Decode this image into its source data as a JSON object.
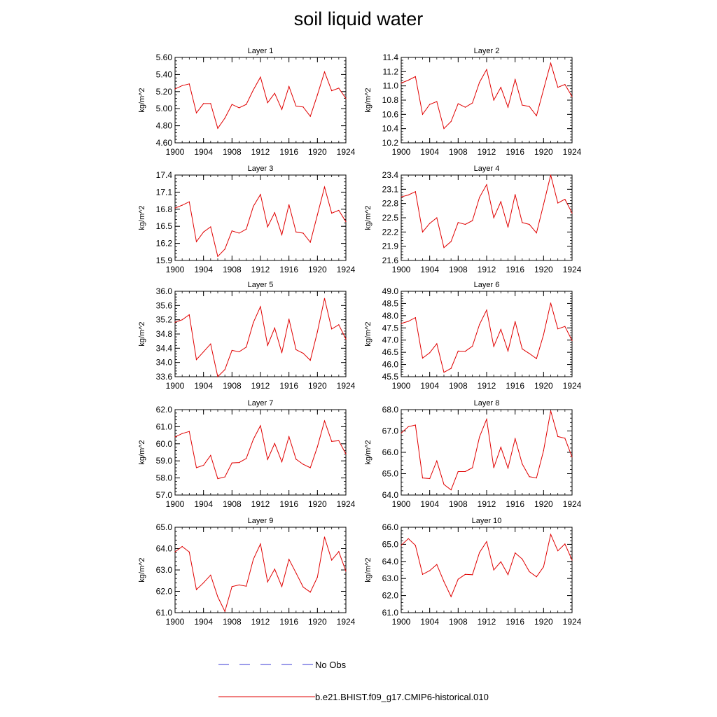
{
  "title": "soil liquid water",
  "legend": {
    "entries": [
      {
        "label": "No Obs",
        "color": "#3a3ad6",
        "style": "dashed"
      },
      {
        "label": "b.e21.BHIST.f09_g17.CMIP6-historical.010",
        "color": "#e00000",
        "style": "solid"
      }
    ]
  },
  "chart_data": [
    {
      "type": "line",
      "title": "Layer 1",
      "xlabel": "",
      "ylabel": "kg/m^2",
      "xlim": [
        1900,
        1924
      ],
      "ylim": [
        4.6,
        5.6
      ],
      "xticks": [
        "1900",
        "1904",
        "1908",
        "1912",
        "1916",
        "1920",
        "1924"
      ],
      "yticks": [
        "4.60",
        "4.80",
        "5.00",
        "5.20",
        "5.40",
        "5.60"
      ],
      "series": [
        {
          "color": "#e00000",
          "x": [
            1900,
            1901,
            1902,
            1903,
            1904,
            1905,
            1906,
            1907,
            1908,
            1909,
            1910,
            1911,
            1912,
            1913,
            1914,
            1915,
            1916,
            1917,
            1918,
            1919,
            1920,
            1921,
            1922,
            1923,
            1924
          ],
          "values": [
            5.23,
            5.27,
            5.29,
            4.95,
            5.06,
            5.06,
            4.77,
            4.89,
            5.05,
            5.01,
            5.05,
            5.22,
            5.37,
            5.07,
            5.18,
            4.99,
            5.26,
            5.03,
            5.02,
            4.91,
            5.16,
            5.43,
            5.21,
            5.24,
            5.12
          ]
        }
      ]
    },
    {
      "type": "line",
      "title": "Layer 2",
      "xlabel": "",
      "ylabel": "kg/m^2",
      "xlim": [
        1900,
        1924
      ],
      "ylim": [
        10.2,
        11.4
      ],
      "xticks": [
        "1900",
        "1904",
        "1908",
        "1912",
        "1916",
        "1920",
        "1924"
      ],
      "yticks": [
        "10.2",
        "10.4",
        "10.6",
        "10.8",
        "11.0",
        "11.2",
        "11.4"
      ],
      "series": [
        {
          "color": "#e00000",
          "x": [
            1900,
            1901,
            1902,
            1903,
            1904,
            1905,
            1906,
            1907,
            1908,
            1909,
            1910,
            1911,
            1912,
            1913,
            1914,
            1915,
            1916,
            1917,
            1918,
            1919,
            1920,
            1921,
            1922,
            1923,
            1924
          ],
          "values": [
            11.04,
            11.08,
            11.13,
            10.6,
            10.74,
            10.78,
            10.4,
            10.5,
            10.75,
            10.7,
            10.76,
            11.05,
            11.23,
            10.8,
            10.98,
            10.7,
            11.09,
            10.73,
            10.71,
            10.58,
            10.95,
            11.32,
            10.98,
            11.02,
            10.85
          ]
        }
      ]
    },
    {
      "type": "line",
      "title": "Layer 3",
      "xlabel": "",
      "ylabel": "kg/m^2",
      "xlim": [
        1900,
        1924
      ],
      "ylim": [
        15.9,
        17.4
      ],
      "xticks": [
        "1900",
        "1904",
        "1908",
        "1912",
        "1916",
        "1920",
        "1924"
      ],
      "yticks": [
        "15.9",
        "16.2",
        "16.5",
        "16.8",
        "17.1",
        "17.4"
      ],
      "series": [
        {
          "color": "#e00000",
          "x": [
            1900,
            1901,
            1902,
            1903,
            1904,
            1905,
            1906,
            1907,
            1908,
            1909,
            1910,
            1911,
            1912,
            1913,
            1914,
            1915,
            1916,
            1917,
            1918,
            1919,
            1920,
            1921,
            1922,
            1923,
            1924
          ],
          "values": [
            16.82,
            16.87,
            16.93,
            16.23,
            16.4,
            16.49,
            15.97,
            16.1,
            16.42,
            16.38,
            16.45,
            16.85,
            17.06,
            16.49,
            16.74,
            16.35,
            16.88,
            16.4,
            16.38,
            16.22,
            16.7,
            17.19,
            16.73,
            16.78,
            16.58
          ]
        }
      ]
    },
    {
      "type": "line",
      "title": "Layer 4",
      "xlabel": "",
      "ylabel": "kg/m^2",
      "xlim": [
        1900,
        1924
      ],
      "ylim": [
        21.6,
        23.4
      ],
      "xticks": [
        "1900",
        "1904",
        "1908",
        "1912",
        "1916",
        "1920",
        "1924"
      ],
      "yticks": [
        "21.6",
        "21.9",
        "22.2",
        "22.5",
        "22.8",
        "23.1",
        "23.4"
      ],
      "series": [
        {
          "color": "#e00000",
          "x": [
            1900,
            1901,
            1902,
            1903,
            1904,
            1905,
            1906,
            1907,
            1908,
            1909,
            1910,
            1911,
            1912,
            1913,
            1914,
            1915,
            1916,
            1917,
            1918,
            1919,
            1920,
            1921,
            1922,
            1923,
            1924
          ],
          "values": [
            22.94,
            22.98,
            23.05,
            22.2,
            22.38,
            22.5,
            21.87,
            22.0,
            22.4,
            22.36,
            22.44,
            22.93,
            23.2,
            22.5,
            22.84,
            22.3,
            22.99,
            22.4,
            22.36,
            22.18,
            22.78,
            23.4,
            22.81,
            22.89,
            22.6
          ]
        }
      ]
    },
    {
      "type": "line",
      "title": "Layer 5",
      "xlabel": "",
      "ylabel": "kg/m^2",
      "xlim": [
        1900,
        1924
      ],
      "ylim": [
        33.6,
        36.0
      ],
      "xticks": [
        "1900",
        "1904",
        "1908",
        "1912",
        "1916",
        "1920",
        "1924"
      ],
      "yticks": [
        "33.6",
        "34.0",
        "34.4",
        "34.8",
        "35.2",
        "35.6",
        "36.0"
      ],
      "series": [
        {
          "color": "#e00000",
          "x": [
            1900,
            1901,
            1902,
            1903,
            1904,
            1905,
            1906,
            1907,
            1908,
            1909,
            1910,
            1911,
            1912,
            1913,
            1914,
            1915,
            1916,
            1917,
            1918,
            1919,
            1920,
            1921,
            1922,
            1923,
            1924
          ],
          "values": [
            35.13,
            35.2,
            35.34,
            34.08,
            34.3,
            34.52,
            33.6,
            33.8,
            34.34,
            34.3,
            34.43,
            35.12,
            35.57,
            34.48,
            34.97,
            34.27,
            35.22,
            34.36,
            34.26,
            34.06,
            34.86,
            35.8,
            34.94,
            35.06,
            34.66
          ]
        }
      ]
    },
    {
      "type": "line",
      "title": "Layer 6",
      "xlabel": "",
      "ylabel": "kg/m^2",
      "xlim": [
        1900,
        1924
      ],
      "ylim": [
        45.5,
        49.0
      ],
      "xticks": [
        "1900",
        "1904",
        "1908",
        "1912",
        "1916",
        "1920",
        "1924"
      ],
      "yticks": [
        "45.5",
        "46.0",
        "46.5",
        "47.0",
        "47.5",
        "48.0",
        "48.5",
        "49.0"
      ],
      "series": [
        {
          "color": "#e00000",
          "x": [
            1900,
            1901,
            1902,
            1903,
            1904,
            1905,
            1906,
            1907,
            1908,
            1909,
            1910,
            1911,
            1912,
            1913,
            1914,
            1915,
            1916,
            1917,
            1918,
            1919,
            1920,
            1921,
            1922,
            1923,
            1924
          ],
          "values": [
            47.68,
            47.77,
            47.92,
            46.26,
            46.48,
            46.85,
            45.68,
            45.84,
            46.55,
            46.54,
            46.75,
            47.64,
            48.23,
            46.74,
            47.44,
            46.55,
            47.76,
            46.64,
            46.45,
            46.24,
            47.22,
            48.52,
            47.46,
            47.56,
            46.98
          ]
        }
      ]
    },
    {
      "type": "line",
      "title": "Layer 7",
      "xlabel": "",
      "ylabel": "kg/m^2",
      "xlim": [
        1900,
        1924
      ],
      "ylim": [
        57.0,
        62.0
      ],
      "xticks": [
        "1900",
        "1904",
        "1908",
        "1912",
        "1916",
        "1920",
        "1924"
      ],
      "yticks": [
        "57.0",
        "58.0",
        "59.0",
        "60.0",
        "61.0",
        "62.0"
      ],
      "series": [
        {
          "color": "#e00000",
          "x": [
            1900,
            1901,
            1902,
            1903,
            1904,
            1905,
            1906,
            1907,
            1908,
            1909,
            1910,
            1911,
            1912,
            1913,
            1914,
            1915,
            1916,
            1917,
            1918,
            1919,
            1920,
            1921,
            1922,
            1923,
            1924
          ],
          "values": [
            60.4,
            60.6,
            60.72,
            58.6,
            58.74,
            59.32,
            57.96,
            58.06,
            58.88,
            58.9,
            59.14,
            60.26,
            61.06,
            59.08,
            60.02,
            58.94,
            60.42,
            59.1,
            58.8,
            58.6,
            59.82,
            61.34,
            60.14,
            60.18,
            59.4
          ]
        }
      ]
    },
    {
      "type": "line",
      "title": "Layer 8",
      "xlabel": "",
      "ylabel": "kg/m^2",
      "xlim": [
        1900,
        1924
      ],
      "ylim": [
        64.0,
        68.0
      ],
      "xticks": [
        "1900",
        "1904",
        "1908",
        "1912",
        "1916",
        "1920",
        "1924"
      ],
      "yticks": [
        "64.0",
        "65.0",
        "66.0",
        "67.0",
        "68.0"
      ],
      "series": [
        {
          "color": "#e00000",
          "x": [
            1900,
            1901,
            1902,
            1903,
            1904,
            1905,
            1906,
            1907,
            1908,
            1909,
            1910,
            1911,
            1912,
            1913,
            1914,
            1915,
            1916,
            1917,
            1918,
            1919,
            1920,
            1921,
            1922,
            1923,
            1924
          ],
          "values": [
            66.9,
            67.2,
            67.28,
            64.8,
            64.77,
            65.6,
            64.5,
            64.24,
            65.1,
            65.1,
            65.28,
            66.72,
            67.55,
            65.28,
            66.24,
            65.26,
            66.64,
            65.46,
            64.86,
            64.8,
            66.08,
            67.94,
            66.74,
            66.66,
            65.78
          ]
        }
      ]
    },
    {
      "type": "line",
      "title": "Layer 9",
      "xlabel": "",
      "ylabel": "kg/m^2",
      "xlim": [
        1900,
        1924
      ],
      "ylim": [
        61.0,
        65.0
      ],
      "xticks": [
        "1900",
        "1904",
        "1908",
        "1912",
        "1916",
        "1920",
        "1924"
      ],
      "yticks": [
        "61.0",
        "62.0",
        "63.0",
        "64.0",
        "65.0"
      ],
      "series": [
        {
          "color": "#e00000",
          "x": [
            1900,
            1901,
            1902,
            1903,
            1904,
            1905,
            1906,
            1907,
            1908,
            1909,
            1910,
            1911,
            1912,
            1913,
            1914,
            1915,
            1916,
            1917,
            1918,
            1919,
            1920,
            1921,
            1922,
            1923,
            1924
          ],
          "values": [
            63.85,
            64.1,
            63.84,
            62.08,
            62.4,
            62.76,
            61.74,
            61.06,
            62.22,
            62.3,
            62.24,
            63.5,
            64.22,
            62.44,
            63.04,
            62.22,
            63.5,
            62.86,
            62.2,
            61.96,
            62.66,
            64.54,
            63.46,
            63.86,
            62.94
          ]
        }
      ]
    },
    {
      "type": "line",
      "title": "Layer 10",
      "xlabel": "",
      "ylabel": "kg/m^2",
      "xlim": [
        1900,
        1924
      ],
      "ylim": [
        61.0,
        66.0
      ],
      "xticks": [
        "1900",
        "1904",
        "1908",
        "1912",
        "1916",
        "1920",
        "1924"
      ],
      "yticks": [
        "61.0",
        "62.0",
        "63.0",
        "64.0",
        "65.0",
        "66.0"
      ],
      "series": [
        {
          "color": "#e00000",
          "x": [
            1900,
            1901,
            1902,
            1903,
            1904,
            1905,
            1906,
            1907,
            1908,
            1909,
            1910,
            1911,
            1912,
            1913,
            1914,
            1915,
            1916,
            1917,
            1918,
            1919,
            1920,
            1921,
            1922,
            1923,
            1924
          ],
          "values": [
            64.95,
            65.33,
            64.94,
            63.24,
            63.46,
            63.82,
            62.82,
            61.94,
            62.96,
            63.24,
            63.22,
            64.52,
            65.16,
            63.5,
            63.98,
            63.22,
            64.5,
            64.14,
            63.4,
            63.1,
            63.68,
            65.58,
            64.62,
            65.02,
            64.08
          ]
        }
      ]
    }
  ]
}
